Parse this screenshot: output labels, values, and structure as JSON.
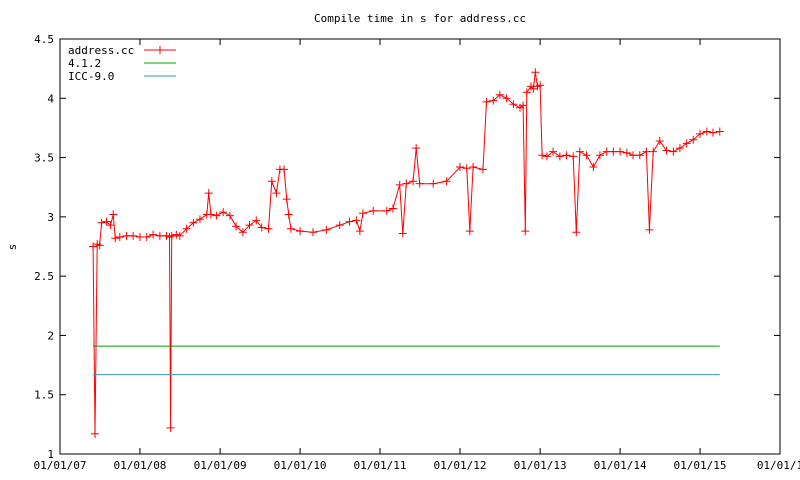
{
  "chart_data": {
    "type": "line",
    "title": "Compile time in s for address.cc",
    "xlabel": "",
    "ylabel": "s",
    "ylim": [
      1,
      4.5
    ],
    "yticks": [
      "1",
      "1.5",
      "2",
      "2.5",
      "3",
      "3.5",
      "4",
      "4.5"
    ],
    "xlim": [
      "2007-01-01",
      "2016-01-01"
    ],
    "xticks": [
      "01/01/07",
      "01/01/08",
      "01/01/09",
      "01/01/10",
      "01/01/11",
      "01/01/12",
      "01/01/13",
      "01/01/14",
      "01/01/15",
      "01/01/1"
    ],
    "grid": false,
    "legend_position": "top-left",
    "series": [
      {
        "name": "address.cc",
        "color": "#ff0000",
        "marker": "plus",
        "points": [
          [
            "2007-06-01",
            2.75
          ],
          [
            "2007-06-10",
            1.17
          ],
          [
            "2007-06-20",
            2.77
          ],
          [
            "2007-07-01",
            2.76
          ],
          [
            "2007-07-10",
            2.95
          ],
          [
            "2007-08-01",
            2.96
          ],
          [
            "2007-08-20",
            2.93
          ],
          [
            "2007-09-01",
            3.02
          ],
          [
            "2007-09-10",
            2.82
          ],
          [
            "2007-10-01",
            2.83
          ],
          [
            "2007-11-01",
            2.84
          ],
          [
            "2007-12-01",
            2.84
          ],
          [
            "2008-01-01",
            2.83
          ],
          [
            "2008-02-01",
            2.83
          ],
          [
            "2008-03-01",
            2.85
          ],
          [
            "2008-04-01",
            2.84
          ],
          [
            "2008-05-01",
            2.84
          ],
          [
            "2008-05-15",
            2.83
          ],
          [
            "2008-05-20",
            1.22
          ],
          [
            "2008-05-25",
            2.84
          ],
          [
            "2008-06-15",
            2.85
          ],
          [
            "2008-07-01",
            2.84
          ],
          [
            "2008-08-01",
            2.9
          ],
          [
            "2008-09-01",
            2.95
          ],
          [
            "2008-10-01",
            2.98
          ],
          [
            "2008-11-01",
            3.02
          ],
          [
            "2008-11-10",
            3.2
          ],
          [
            "2008-11-20",
            3.02
          ],
          [
            "2008-12-15",
            3.01
          ],
          [
            "2009-01-15",
            3.04
          ],
          [
            "2009-02-15",
            3.01
          ],
          [
            "2009-03-15",
            2.92
          ],
          [
            "2009-04-15",
            2.87
          ],
          [
            "2009-05-15",
            2.93
          ],
          [
            "2009-06-15",
            2.97
          ],
          [
            "2009-07-10",
            2.91
          ],
          [
            "2009-08-10",
            2.9
          ],
          [
            "2009-08-25",
            3.3
          ],
          [
            "2009-09-15",
            3.2
          ],
          [
            "2009-10-01",
            3.4
          ],
          [
            "2009-10-20",
            3.4
          ],
          [
            "2009-11-01",
            3.15
          ],
          [
            "2009-11-10",
            3.02
          ],
          [
            "2009-11-20",
            2.9
          ],
          [
            "2010-01-01",
            2.88
          ],
          [
            "2010-03-01",
            2.87
          ],
          [
            "2010-05-01",
            2.89
          ],
          [
            "2010-07-01",
            2.93
          ],
          [
            "2010-08-15",
            2.96
          ],
          [
            "2010-09-15",
            2.97
          ],
          [
            "2010-10-01",
            2.88
          ],
          [
            "2010-10-15",
            3.03
          ],
          [
            "2010-12-01",
            3.05
          ],
          [
            "2011-02-01",
            3.05
          ],
          [
            "2011-03-01",
            3.07
          ],
          [
            "2011-04-01",
            3.27
          ],
          [
            "2011-04-15",
            2.86
          ],
          [
            "2011-05-01",
            3.28
          ],
          [
            "2011-06-01",
            3.3
          ],
          [
            "2011-06-15",
            3.58
          ],
          [
            "2011-07-01",
            3.28
          ],
          [
            "2011-09-01",
            3.28
          ],
          [
            "2011-11-01",
            3.3
          ],
          [
            "2012-01-01",
            3.42
          ],
          [
            "2012-02-01",
            3.41
          ],
          [
            "2012-02-15",
            2.88
          ],
          [
            "2012-03-01",
            3.42
          ],
          [
            "2012-04-15",
            3.4
          ],
          [
            "2012-05-01",
            3.97
          ],
          [
            "2012-06-01",
            3.98
          ],
          [
            "2012-07-01",
            4.03
          ],
          [
            "2012-08-01",
            4.0
          ],
          [
            "2012-09-01",
            3.95
          ],
          [
            "2012-10-01",
            3.92
          ],
          [
            "2012-10-15",
            3.94
          ],
          [
            "2012-10-25",
            2.88
          ],
          [
            "2012-11-01",
            4.05
          ],
          [
            "2012-11-20",
            4.1
          ],
          [
            "2012-12-01",
            4.08
          ],
          [
            "2012-12-10",
            4.22
          ],
          [
            "2012-12-20",
            4.1
          ],
          [
            "2013-01-01",
            4.11
          ],
          [
            "2013-01-10",
            3.52
          ],
          [
            "2013-02-01",
            3.51
          ],
          [
            "2013-03-01",
            3.55
          ],
          [
            "2013-04-01",
            3.51
          ],
          [
            "2013-05-01",
            3.52
          ],
          [
            "2013-06-01",
            3.51
          ],
          [
            "2013-06-15",
            2.87
          ],
          [
            "2013-07-01",
            3.55
          ],
          [
            "2013-08-01",
            3.52
          ],
          [
            "2013-09-01",
            3.42
          ],
          [
            "2013-10-01",
            3.52
          ],
          [
            "2013-11-01",
            3.55
          ],
          [
            "2013-12-01",
            3.55
          ],
          [
            "2014-01-01",
            3.55
          ],
          [
            "2014-02-01",
            3.54
          ],
          [
            "2014-03-01",
            3.52
          ],
          [
            "2014-04-01",
            3.52
          ],
          [
            "2014-05-01",
            3.55
          ],
          [
            "2014-05-15",
            2.89
          ],
          [
            "2014-06-01",
            3.55
          ],
          [
            "2014-07-01",
            3.64
          ],
          [
            "2014-08-01",
            3.56
          ],
          [
            "2014-09-01",
            3.55
          ],
          [
            "2014-10-01",
            3.58
          ],
          [
            "2014-11-01",
            3.62
          ],
          [
            "2014-12-01",
            3.65
          ],
          [
            "2015-01-01",
            3.7
          ],
          [
            "2015-02-01",
            3.72
          ],
          [
            "2015-03-01",
            3.71
          ],
          [
            "2015-04-01",
            3.72
          ]
        ]
      },
      {
        "name": "4.1.2",
        "color": "#00a000",
        "points": [
          [
            "2007-06-01",
            1.91
          ],
          [
            "2015-04-01",
            1.91
          ]
        ]
      },
      {
        "name": "ICC-9.0",
        "color": "#3a8fd0",
        "points": [
          [
            "2007-06-01",
            1.67
          ],
          [
            "2015-04-01",
            1.67
          ]
        ]
      }
    ]
  }
}
